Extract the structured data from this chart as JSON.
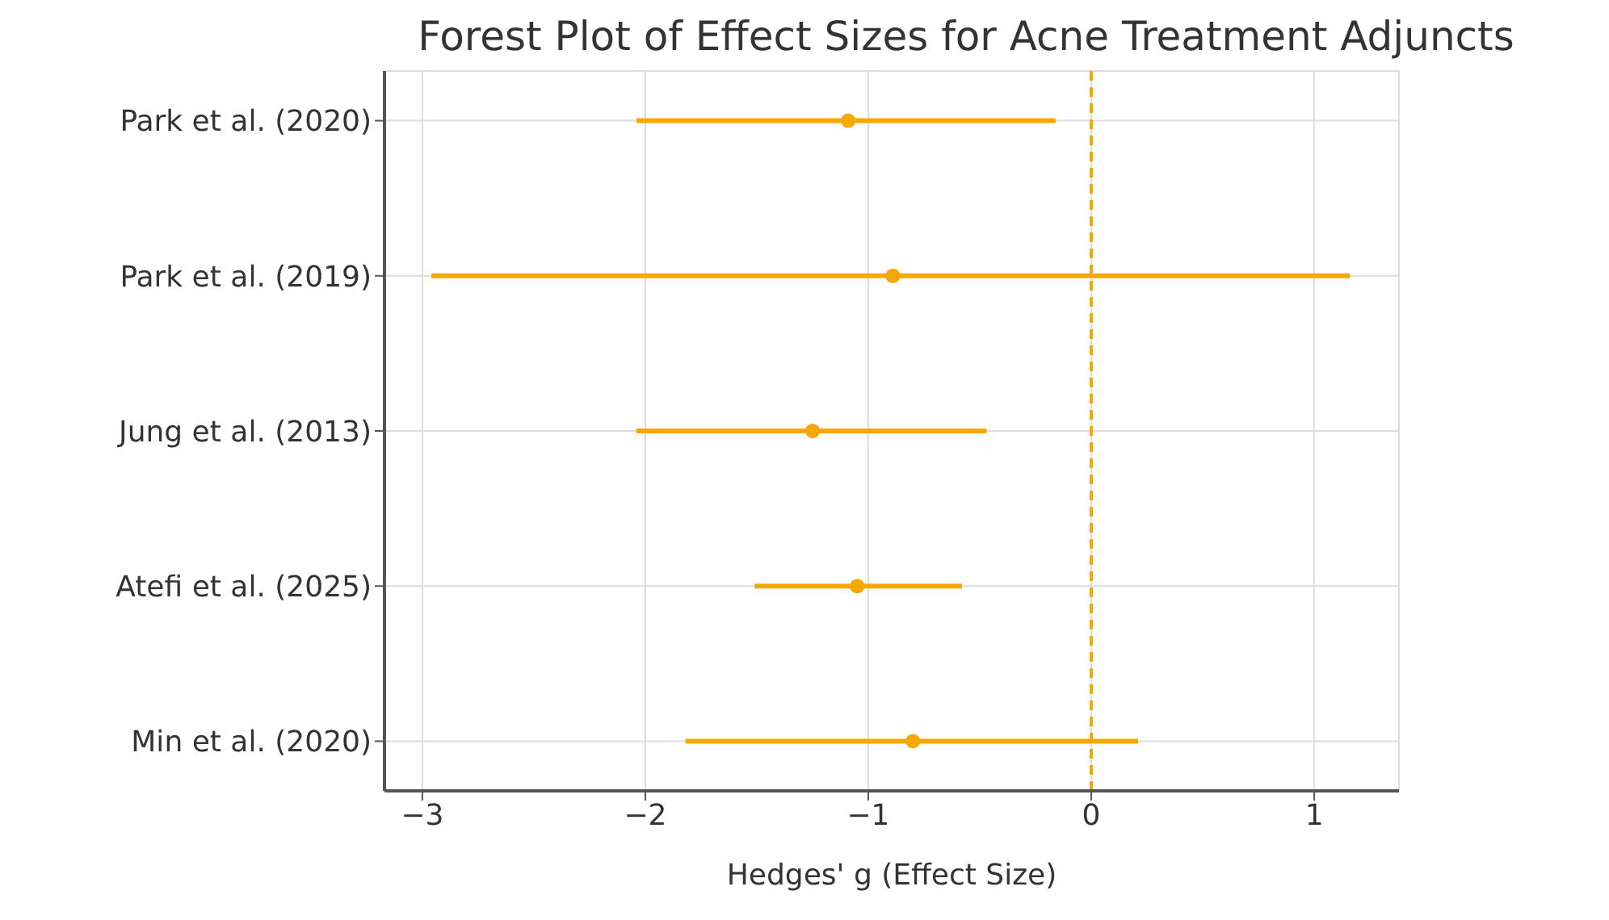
{
  "chart_data": {
    "type": "scatter",
    "title": "Forest Plot of Effect Sizes for Acne Treatment Adjuncts",
    "xlabel": "Hedges' g (Effect Size)",
    "categories": [
      "Park et al. (2020)",
      "Park et al. (2019)",
      "Jung et al. (2013)",
      "Atefi et al. (2025)",
      "Min et al. (2020)"
    ],
    "orientation": "horizontal",
    "series": [
      {
        "color": "#f5a800",
        "values": [
          -1.09,
          -0.89,
          -1.25,
          -1.05,
          -0.8
        ],
        "errors": [
          [
            -2.04,
            -0.16
          ],
          [
            -2.96,
            1.16
          ],
          [
            -2.04,
            -0.47
          ],
          [
            -1.51,
            -0.58
          ],
          [
            -1.82,
            0.21
          ]
        ]
      }
    ],
    "xlim": [
      -3.17,
      1.38
    ],
    "xticks": [
      -3,
      -2,
      -1,
      0,
      1
    ],
    "grid": true,
    "marker": "circle",
    "ref_lines": [
      {
        "axis": "x",
        "value": 0,
        "color": "#f5a800",
        "line_style": "dashed"
      }
    ]
  }
}
